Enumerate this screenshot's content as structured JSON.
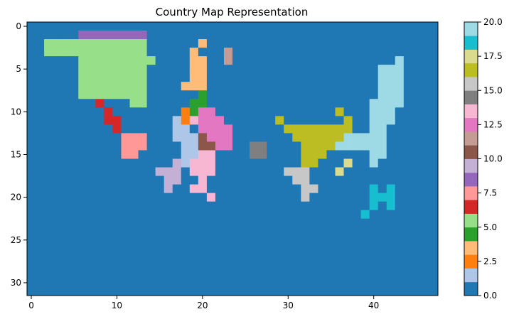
{
  "chart_data": {
    "type": "heatmap",
    "title": "Country Map Representation",
    "xlabel": "",
    "ylabel": "",
    "n_cols": 48,
    "n_rows": 32,
    "xlim": [
      -0.5,
      47.5
    ],
    "ylim": [
      31.5,
      -0.5
    ],
    "x_ticks": [
      0,
      10,
      20,
      30,
      40
    ],
    "y_ticks": [
      0,
      5,
      10,
      15,
      20,
      25,
      30
    ],
    "background_value": 0,
    "colorbar": {
      "range": [
        0,
        20
      ],
      "ticks": [
        "0.0",
        "2.5",
        "5.0",
        "7.5",
        "10.0",
        "12.5",
        "15.0",
        "17.5",
        "20.0"
      ],
      "tick_values": [
        0,
        2.5,
        5,
        7.5,
        10,
        12.5,
        15,
        17.5,
        20
      ],
      "colormap": "tab20",
      "colors": [
        "#1f77b4",
        "#aec7e8",
        "#ff7f0e",
        "#ffbb78",
        "#2ca02c",
        "#98df8a",
        "#d62728",
        "#ff9896",
        "#9467bd",
        "#c5b0d5",
        "#8c564b",
        "#c49c94",
        "#e377c2",
        "#f7b6d2",
        "#7f7f7f",
        "#c7c7c7",
        "#bcbd22",
        "#dbdb8d",
        "#17becf",
        "#9edae5"
      ]
    },
    "regions": [
      {
        "value": 8,
        "rows": [
          [
            1,
            6,
            13
          ]
        ]
      },
      {
        "value": 5,
        "rows": [
          [
            2,
            2,
            13
          ],
          [
            3,
            2,
            13
          ],
          [
            4,
            6,
            14
          ],
          [
            5,
            6,
            13
          ],
          [
            6,
            6,
            13
          ],
          [
            7,
            6,
            13
          ],
          [
            8,
            6,
            13
          ],
          [
            9,
            12,
            13
          ]
        ]
      },
      {
        "value": 6,
        "rows": [
          [
            9,
            8,
            8
          ],
          [
            10,
            9,
            9
          ],
          [
            11,
            9,
            10
          ],
          [
            12,
            10,
            10
          ]
        ]
      },
      {
        "value": 7,
        "rows": [
          [
            13,
            11,
            13
          ],
          [
            14,
            11,
            13
          ],
          [
            15,
            11,
            12
          ]
        ]
      },
      {
        "value": 3,
        "rows": [
          [
            2,
            20,
            20
          ],
          [
            3,
            19,
            19
          ],
          [
            4,
            19,
            20
          ],
          [
            5,
            19,
            20
          ],
          [
            6,
            19,
            20
          ],
          [
            7,
            18,
            20
          ]
        ]
      },
      {
        "value": 4,
        "rows": [
          [
            8,
            20,
            20
          ],
          [
            9,
            19,
            20
          ],
          [
            10,
            19,
            19
          ]
        ]
      },
      {
        "value": 2,
        "rows": [
          [
            10,
            18,
            18
          ],
          [
            11,
            18,
            18
          ]
        ]
      },
      {
        "value": 1,
        "rows": [
          [
            11,
            17,
            17
          ],
          [
            12,
            17,
            18
          ],
          [
            13,
            17,
            19
          ],
          [
            14,
            18,
            19
          ],
          [
            15,
            18,
            19
          ],
          [
            16,
            17,
            18
          ],
          [
            17,
            17,
            17
          ]
        ]
      },
      {
        "value": 12,
        "rows": [
          [
            10,
            20,
            21
          ],
          [
            11,
            20,
            22
          ],
          [
            12,
            20,
            23
          ],
          [
            13,
            21,
            23
          ],
          [
            14,
            22,
            23
          ]
        ]
      },
      {
        "value": 10,
        "rows": [
          [
            13,
            20,
            20
          ],
          [
            14,
            20,
            21
          ]
        ]
      },
      {
        "value": 13,
        "rows": [
          [
            11,
            19,
            19
          ],
          [
            15,
            20,
            21
          ],
          [
            16,
            19,
            21
          ],
          [
            17,
            19,
            21
          ],
          [
            18,
            20,
            20
          ],
          [
            19,
            19,
            20
          ],
          [
            20,
            21,
            21
          ]
        ]
      },
      {
        "value": 9,
        "rows": [
          [
            16,
            17,
            17
          ],
          [
            17,
            15,
            17
          ],
          [
            18,
            16,
            17
          ],
          [
            19,
            16,
            16
          ]
        ]
      },
      {
        "value": 11,
        "rows": [
          [
            3,
            23,
            23
          ],
          [
            4,
            23,
            23
          ]
        ]
      },
      {
        "value": 14,
        "rows": [
          [
            14,
            26,
            27
          ],
          [
            15,
            26,
            27
          ]
        ]
      },
      {
        "value": 16,
        "rows": [
          [
            11,
            29,
            29
          ],
          [
            12,
            30,
            37
          ],
          [
            13,
            31,
            36
          ],
          [
            14,
            32,
            35
          ],
          [
            15,
            32,
            34
          ],
          [
            16,
            32,
            33
          ],
          [
            10,
            36,
            36
          ],
          [
            11,
            37,
            37
          ]
        ]
      },
      {
        "value": 19,
        "rows": [
          [
            4,
            43,
            43
          ],
          [
            5,
            41,
            43
          ],
          [
            6,
            41,
            43
          ],
          [
            7,
            41,
            43
          ],
          [
            8,
            41,
            43
          ],
          [
            9,
            40,
            43
          ],
          [
            10,
            40,
            42
          ],
          [
            11,
            40,
            42
          ],
          [
            12,
            40,
            41
          ],
          [
            13,
            37,
            41
          ],
          [
            14,
            36,
            41
          ],
          [
            15,
            40,
            41
          ],
          [
            16,
            40,
            40
          ]
        ]
      },
      {
        "value": 17,
        "rows": [
          [
            16,
            37,
            37
          ],
          [
            17,
            36,
            36
          ]
        ]
      },
      {
        "value": 15,
        "rows": [
          [
            17,
            30,
            32
          ],
          [
            18,
            31,
            32
          ],
          [
            19,
            32,
            33
          ],
          [
            20,
            32,
            32
          ]
        ]
      },
      {
        "value": 18,
        "rows": [
          [
            19,
            40,
            40
          ],
          [
            19,
            42,
            42
          ],
          [
            20,
            40,
            42
          ],
          [
            21,
            40,
            40
          ],
          [
            21,
            42,
            42
          ],
          [
            22,
            39,
            39
          ]
        ]
      }
    ]
  }
}
